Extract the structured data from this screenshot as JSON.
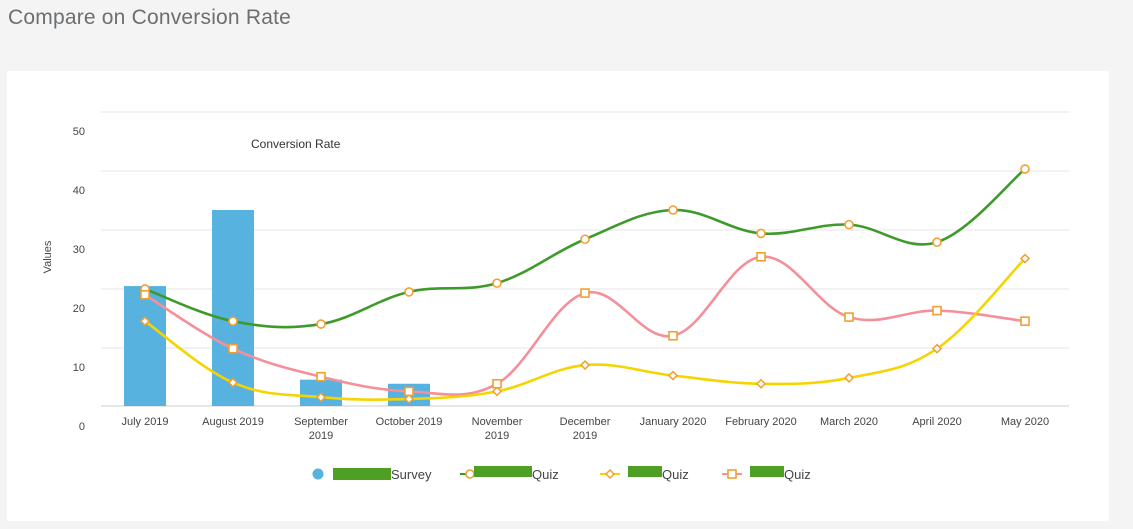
{
  "page": {
    "title": "Compare on Conversion Rate"
  },
  "chart_data": {
    "type": "bar+line",
    "title": "Conversion Rate",
    "xlabel": "",
    "ylabel": "Values",
    "ylim": [
      0,
      50
    ],
    "yticks": [
      0,
      10,
      20,
      30,
      40,
      50
    ],
    "grid": true,
    "categories": [
      [
        "July 2019"
      ],
      [
        "August 2019"
      ],
      [
        "September",
        "2019"
      ],
      [
        "October 2019"
      ],
      [
        "November",
        "2019"
      ],
      [
        "December",
        "2019"
      ],
      [
        "January 2020"
      ],
      [
        "February 2020"
      ],
      [
        "March 2020"
      ],
      [
        "April 2020"
      ],
      [
        "May 2020"
      ]
    ],
    "series": [
      {
        "name": "[redacted] Survey",
        "legend_visible_text": "Survey",
        "type": "bar",
        "color": "#58b2e0",
        "marker": "circle",
        "values": [
          20.5,
          33.5,
          4.5,
          3.8,
          null,
          null,
          null,
          null,
          null,
          null,
          null
        ]
      },
      {
        "name": "[redacted] Quiz",
        "legend_visible_text": "Quiz",
        "type": "line",
        "color": "#3f9a2c",
        "marker": "circle",
        "values": [
          20,
          14.5,
          14,
          19.5,
          21,
          28.5,
          33.5,
          29.5,
          31,
          28,
          40.5
        ]
      },
      {
        "name": "[redacted] Quiz",
        "legend_visible_text": "Quiz",
        "type": "line",
        "color": "#f5d400",
        "marker": "diamond",
        "values": [
          14.5,
          4,
          1.5,
          1.2,
          2.5,
          7,
          5.2,
          3.8,
          4.8,
          9.8,
          25.2
        ]
      },
      {
        "name": "[redacted] Quiz",
        "legend_visible_text": "Quiz",
        "type": "line",
        "color": "#f4909a",
        "marker": "square",
        "values": [
          19,
          9.8,
          5,
          2.5,
          3.8,
          19.3,
          12,
          25.5,
          15.2,
          16.3,
          14.5
        ]
      }
    ],
    "marker_color": "#f0a030",
    "redaction_color": "#4f9f24"
  }
}
